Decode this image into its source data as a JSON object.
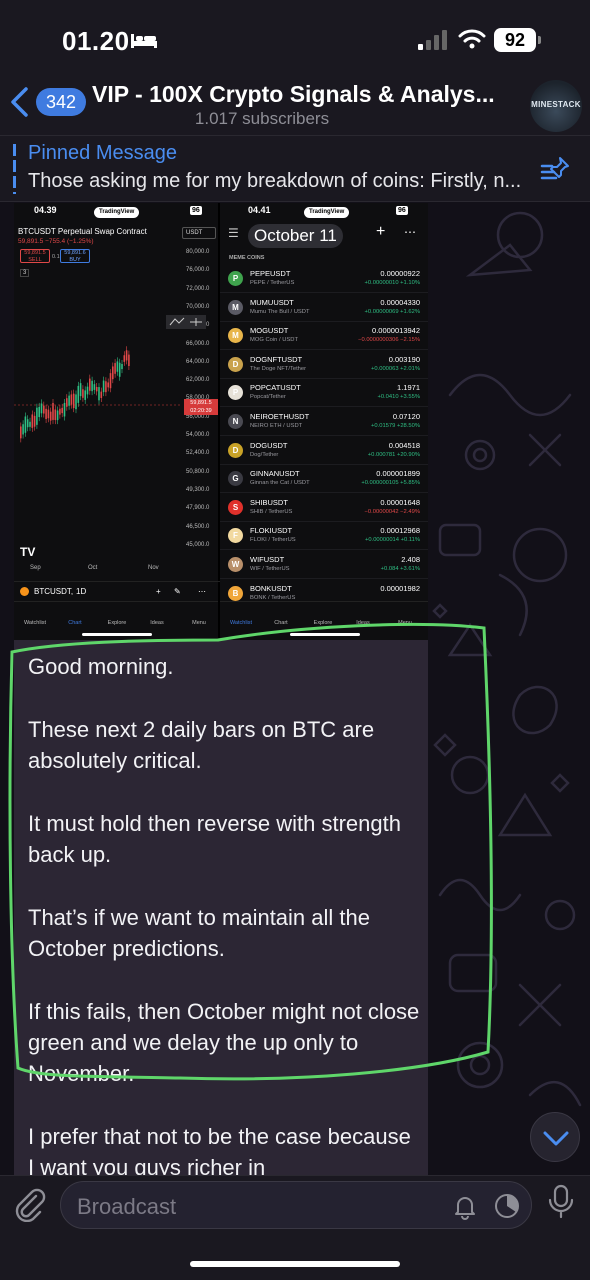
{
  "status_bar": {
    "time": "01.20",
    "battery": "92"
  },
  "header": {
    "back_count": "342",
    "title": "VIP - 100X Crypto Signals & Analys...",
    "subtitle": "1.017 subscribers",
    "avatar_label": "MINESTACK"
  },
  "pinned": {
    "title": "Pinned Message",
    "text": "Those asking me for my breakdown of coins: Firstly, n..."
  },
  "screenshot_left": {
    "time": "04.39",
    "brand": "TradingView",
    "battery": "96",
    "pair": "BTCUSDT Perpetual Swap Contract",
    "price_change": "59,891.5 −755.4 (−1.25%)",
    "sell": "59,891.5",
    "sell_label": "SELL",
    "spread": "0.1",
    "buy": "59,891.6",
    "buy_label": "BUY",
    "currency": "USDT",
    "interval_count": "3",
    "price_axis": [
      "80,000.0",
      "76,000.0",
      "72,000.0",
      "70,000.0",
      "68,000.0",
      "66,000.0",
      "64,000.0",
      "62,000.0",
      "58,000.0",
      "56,000.0",
      "54,000.0",
      "52,400.0",
      "50,800.0",
      "49,300.0",
      "47,900.0",
      "46,500.0",
      "45,000.0"
    ],
    "current_price": "59,891.5",
    "countdown": "02:20:39",
    "x_axis": [
      "Sep",
      "Oct",
      "Nov"
    ],
    "symbol": "BTCUSDT,",
    "timeframe": "1D",
    "tabs": [
      "Watchlist",
      "Chart",
      "Explore",
      "Ideas",
      "Menu"
    ]
  },
  "screenshot_right": {
    "time": "04.41",
    "brand": "TradingView",
    "battery": "96",
    "title": "October 11",
    "section": "MEME COINS",
    "rows": [
      {
        "icon": "P",
        "color": "#3fa34d",
        "symbol": "PEPEUSDT",
        "name": "PEPE / TetherUS",
        "price": "0.00000922",
        "change": "+0.00000010 +1.10%",
        "dir": "up"
      },
      {
        "icon": "M",
        "color": "#5a5a64",
        "symbol": "MUMUUSDT",
        "name": "Mumu The Bull / USDT",
        "price": "0.00004330",
        "change": "+0.00000069 +1.62%",
        "dir": "up"
      },
      {
        "icon": "M",
        "color": "#e8b54a",
        "symbol": "MOGUSDT",
        "name": "MOG Coin / USDT",
        "price": "0.0000013942",
        "change": "−0.0000000306 −2.15%",
        "dir": "down"
      },
      {
        "icon": "D",
        "color": "#c9a24c",
        "symbol": "DOGNFTUSDT",
        "name": "The Doge NFT/Tether",
        "price": "0.003190",
        "change": "+0.000063 +2.01%",
        "dir": "up"
      },
      {
        "icon": "P",
        "color": "#e7e2d8",
        "symbol": "POPCATUSDT",
        "name": "Popcat/Tether",
        "price": "1.1971",
        "change": "+0.0410 +3.55%",
        "dir": "up"
      },
      {
        "icon": "N",
        "color": "#4a4a52",
        "symbol": "NEIROETHUSDT",
        "name": "NEIRO ETH / USDT",
        "price": "0.07120",
        "change": "+0.01579 +28.50%",
        "dir": "up"
      },
      {
        "icon": "D",
        "color": "#c9a227",
        "symbol": "DOGUSDT",
        "name": "Dog/Tether",
        "price": "0.004518",
        "change": "+0.000781 +20.90%",
        "dir": "up"
      },
      {
        "icon": "G",
        "color": "#3a3a42",
        "symbol": "GINNANUSDT",
        "name": "Ginnan the Cat / USDT",
        "price": "0.000001899",
        "change": "+0.000000105 +5.85%",
        "dir": "up"
      },
      {
        "icon": "S",
        "color": "#e0312b",
        "symbol": "SHIBUSDT",
        "name": "SHIB / TetherUS",
        "price": "0.00001648",
        "change": "−0.00000042 −2.49%",
        "dir": "down"
      },
      {
        "icon": "F",
        "color": "#f2d9a0",
        "symbol": "FLOKIUSDT",
        "name": "FLOKI / TetherUS",
        "price": "0.00012968",
        "change": "+0.00000014 +0.11%",
        "dir": "up"
      },
      {
        "icon": "W",
        "color": "#b88f6a",
        "symbol": "WIFUSDT",
        "name": "WIF / TetherUS",
        "price": "2.408",
        "change": "+0.084 +3.61%",
        "dir": "up"
      },
      {
        "icon": "B",
        "color": "#f0a63a",
        "symbol": "BONKUSDT",
        "name": "BONK / TetherUS",
        "price": "0.00001982",
        "change": "",
        "dir": "down"
      }
    ],
    "tabs": [
      "Watchlist",
      "Chart",
      "Explore",
      "Ideas",
      "Menu"
    ]
  },
  "message": {
    "paragraphs": [
      "Good morning.",
      "These next 2 daily bars on BTC are absolutely critical.",
      "It must hold then reverse with strength back up.",
      "That’s if we want to maintain all the October predictions.",
      "If this fails, then October might not close green and we delay the up only to November.",
      "I prefer that not to be the case because I want you guys richer in"
    ]
  },
  "input": {
    "placeholder": "Broadcast"
  },
  "colors": {
    "accent": "#4a8df0",
    "outline": "#5fd66a",
    "up": "#2fbf84",
    "down": "#e04848"
  }
}
